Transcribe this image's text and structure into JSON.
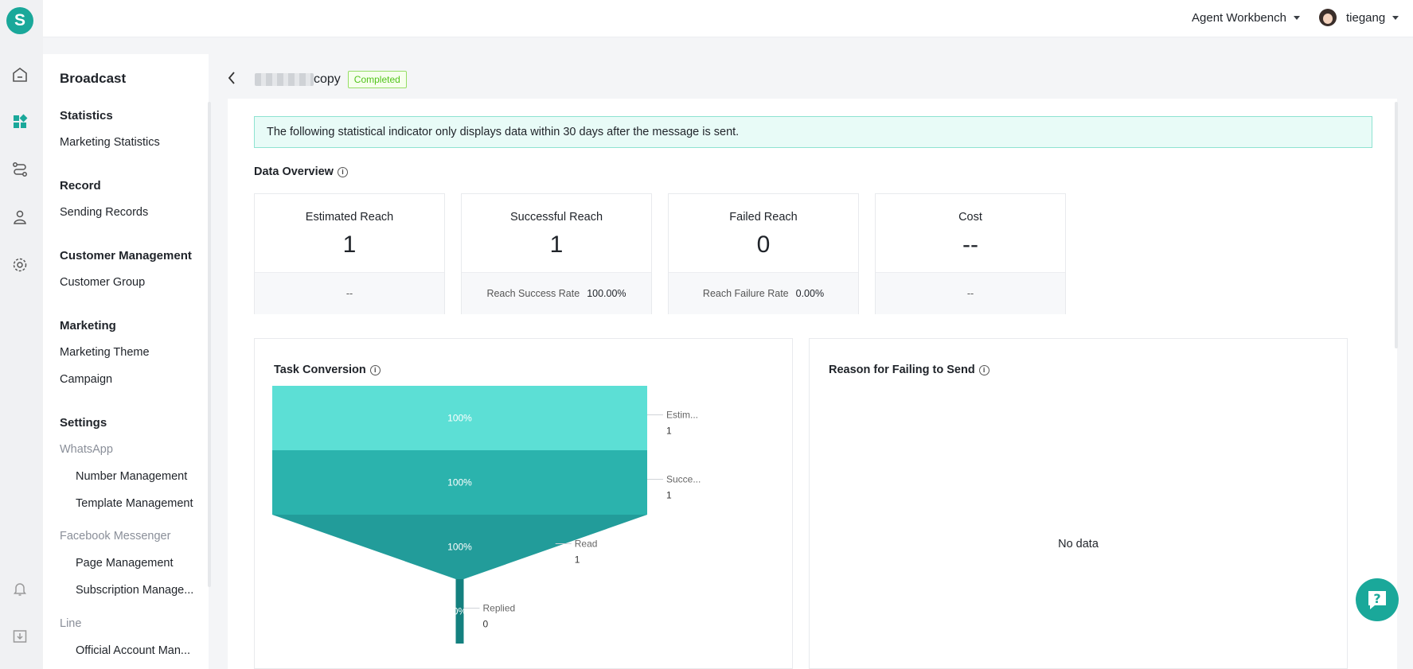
{
  "topbar": {
    "workbench_label": "Agent Workbench",
    "user_name": "tiegang"
  },
  "logo_letter": "S",
  "sidebar": {
    "title": "Broadcast",
    "groups": [
      {
        "label": "Statistics"
      },
      {
        "label": "Record"
      },
      {
        "label": "Customer Management"
      },
      {
        "label": "Marketing"
      },
      {
        "label": "Settings"
      }
    ],
    "items": {
      "marketing_statistics": "Marketing Statistics",
      "sending_records": "Sending Records",
      "customer_group": "Customer Group",
      "marketing_theme": "Marketing Theme",
      "campaign": "Campaign",
      "whatsapp": "WhatsApp",
      "number_management": "Number Management",
      "template_management": "Template Management",
      "facebook_messenger": "Facebook Messenger",
      "page_management": "Page Management",
      "subscription_management": "Subscription Manage...",
      "line": "Line",
      "official_account": "Official Account Man..."
    }
  },
  "header": {
    "title_suffix": "copy",
    "status": "Completed"
  },
  "notice": "The following statistical indicator only displays data within 30 days after the message is sent.",
  "overview": {
    "title": "Data Overview",
    "cards": [
      {
        "label": "Estimated Reach",
        "value": "1",
        "foot_label": "--",
        "foot_value": ""
      },
      {
        "label": "Successful Reach",
        "value": "1",
        "foot_label": "Reach Success Rate",
        "foot_value": "100.00%"
      },
      {
        "label": "Failed Reach",
        "value": "0",
        "foot_label": "Reach Failure Rate",
        "foot_value": "0.00%"
      },
      {
        "label": "Cost",
        "value": "--",
        "foot_label": "--",
        "foot_value": ""
      }
    ]
  },
  "task_conversion": {
    "title": "Task Conversion"
  },
  "failing_reason": {
    "title": "Reason for Failing to Send",
    "empty_text": "No data"
  },
  "chart_data": {
    "type": "funnel",
    "stages": [
      {
        "name": "Estim...",
        "value": 1,
        "percent": "100%"
      },
      {
        "name": "Succe...",
        "value": 1,
        "percent": "100%"
      },
      {
        "name": "Read",
        "value": 1,
        "percent": "100%"
      },
      {
        "name": "Replied",
        "value": 0,
        "percent": "0%"
      }
    ],
    "colors": [
      "#5cdfd5",
      "#2bb3ad",
      "#229c9a",
      "#14807f"
    ]
  }
}
